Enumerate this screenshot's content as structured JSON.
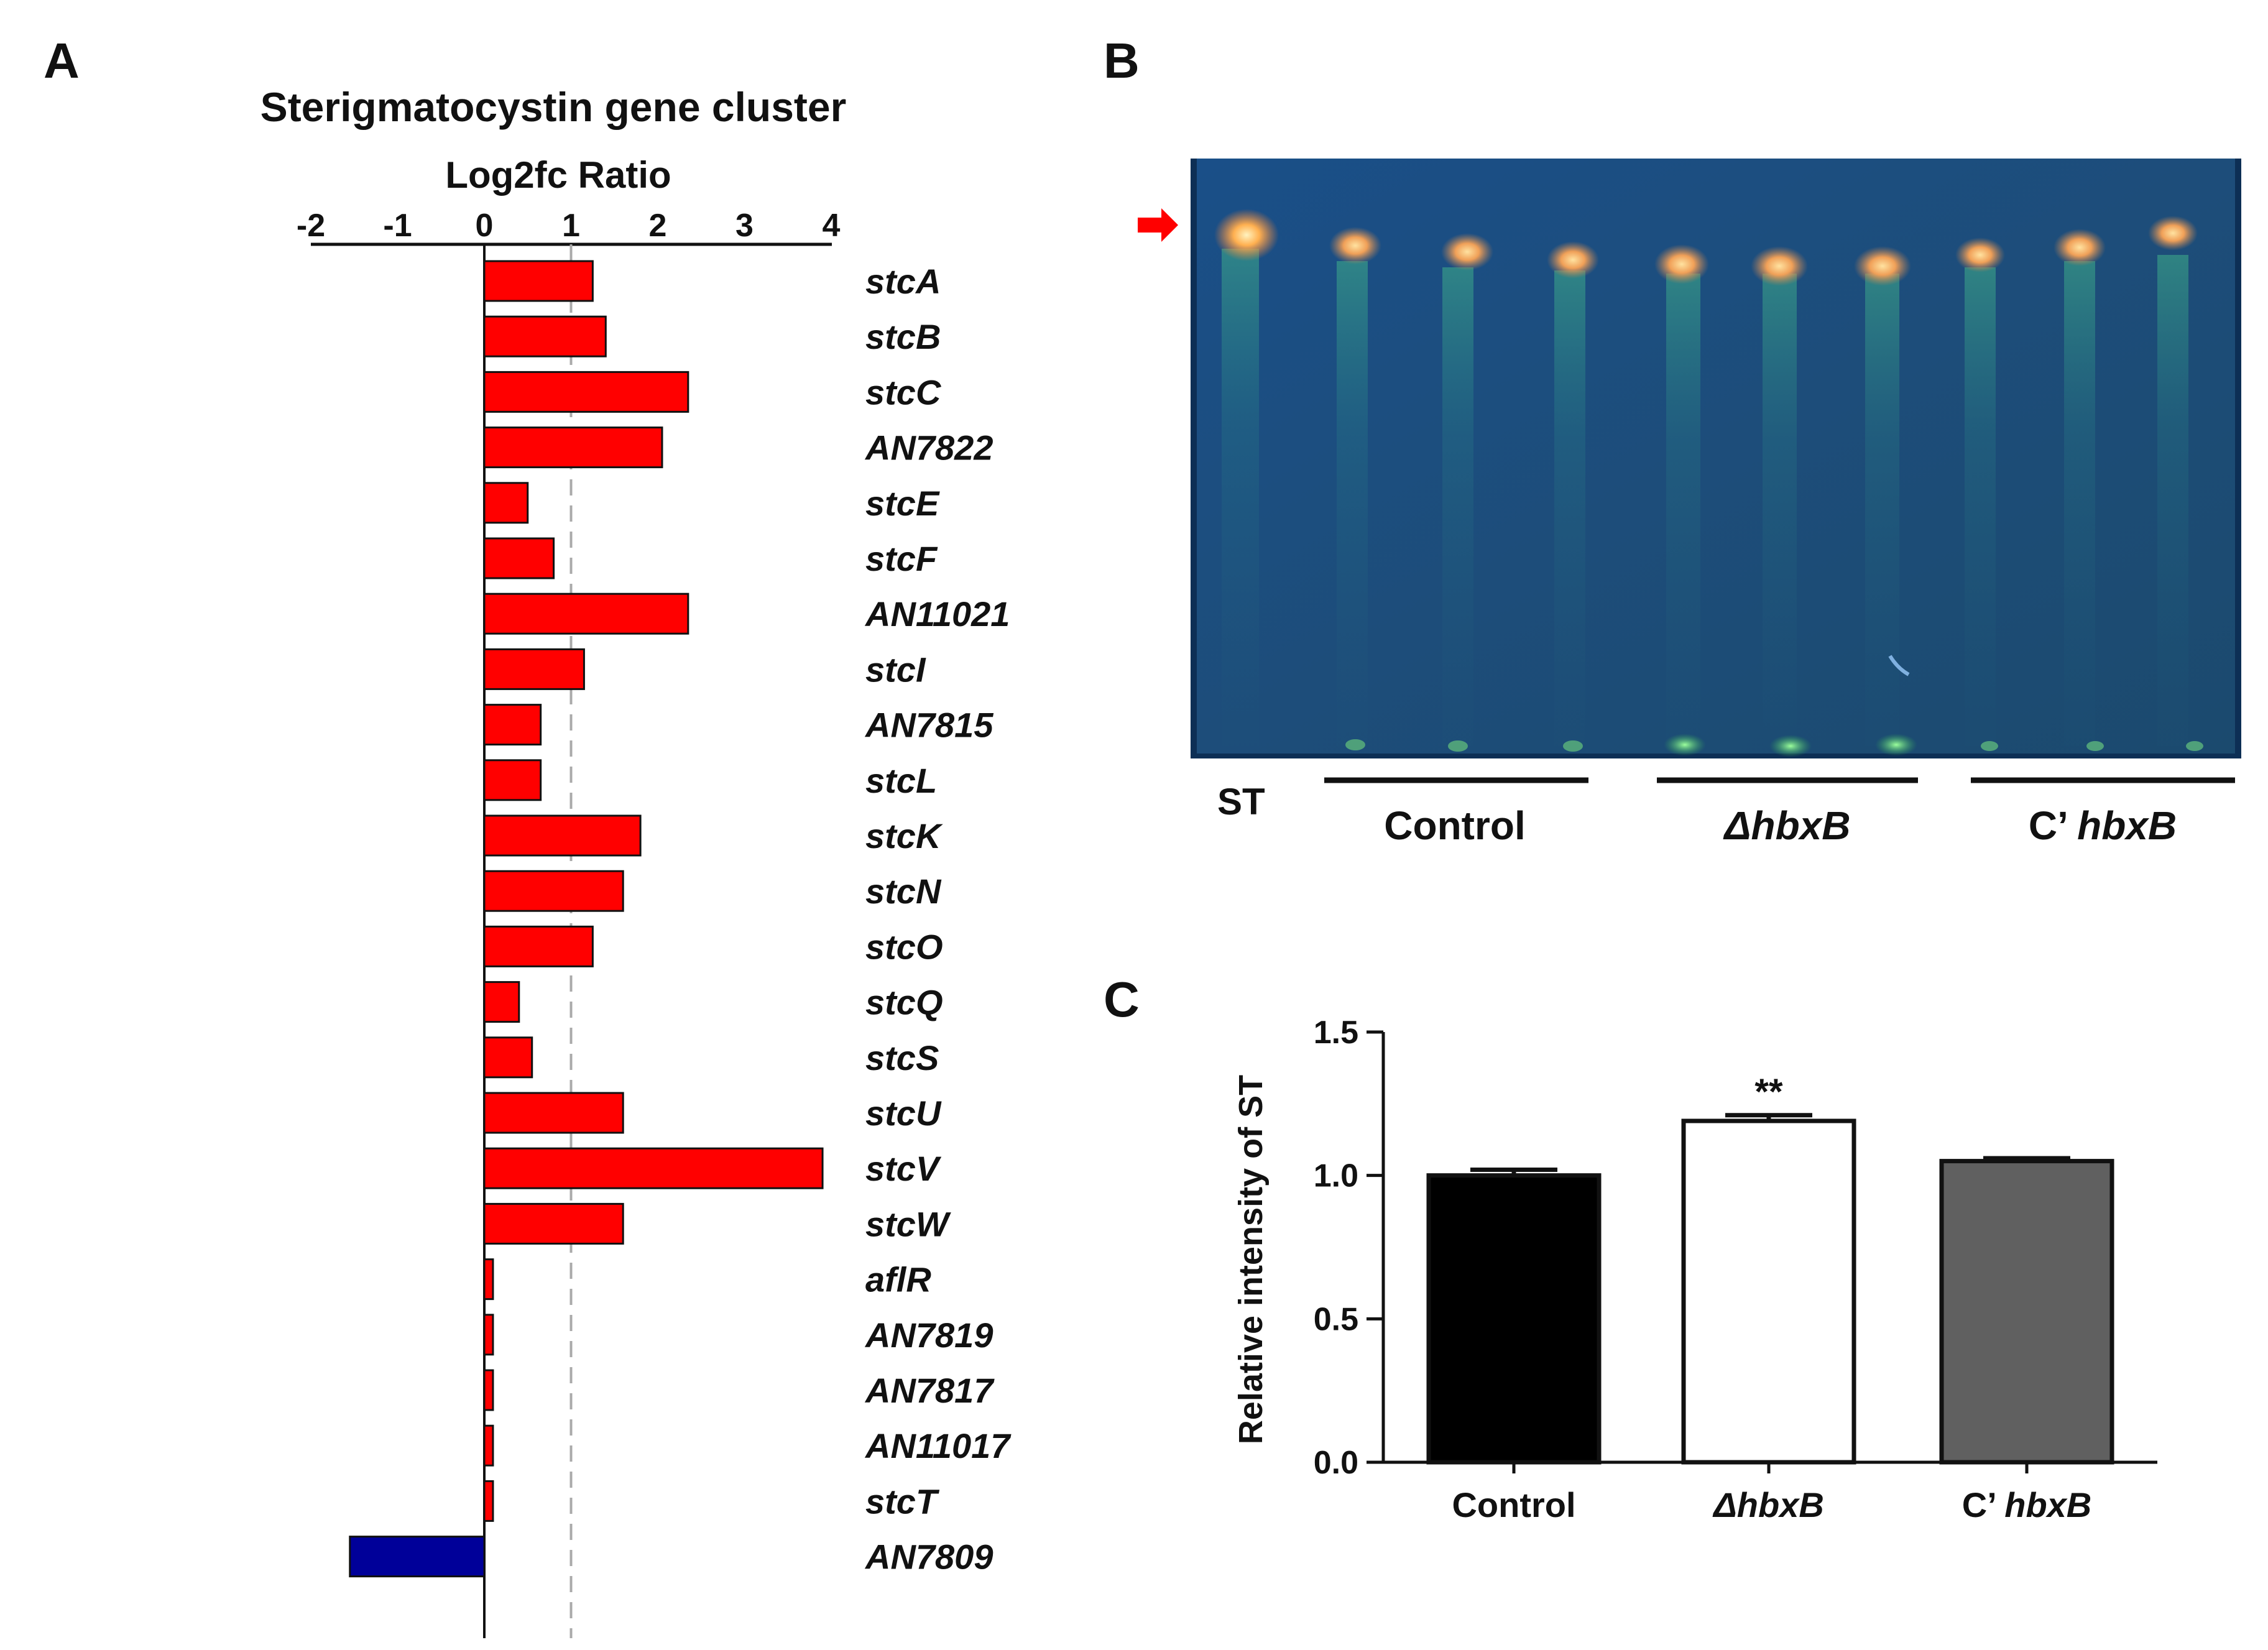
{
  "panels": {
    "a": "A",
    "b": "B",
    "c": "C"
  },
  "chart_data": [
    {
      "type": "bar",
      "orientation": "horizontal",
      "title": "Sterigmatocystin gene cluster",
      "xlabel": "Log2fc Ratio",
      "xlim": [
        -2,
        4
      ],
      "xticks": [
        "-2",
        "-1",
        "0",
        "1",
        "2",
        "3",
        "4"
      ],
      "reference_line": 1,
      "categories": [
        "stcA",
        "stcB",
        "stcC",
        "AN7822",
        "stcE",
        "stcF",
        "AN11021",
        "stcI",
        "AN7815",
        "stcL",
        "stcK",
        "stcN",
        "stcO",
        "stcQ",
        "stcS",
        "stcU",
        "stcV",
        "stcW",
        "aflR",
        "AN7819",
        "AN7817",
        "AN11017",
        "stcT",
        "AN7809"
      ],
      "values": [
        1.25,
        1.4,
        2.35,
        2.05,
        0.5,
        0.8,
        2.35,
        1.15,
        0.65,
        0.65,
        1.8,
        1.6,
        1.25,
        0.4,
        0.55,
        1.6,
        3.9,
        1.6,
        0.1,
        0.1,
        0.1,
        0.1,
        0.1,
        -1.55
      ],
      "colors": {
        "positive": "#ff0000",
        "negative": "#000099"
      }
    },
    {
      "type": "bar",
      "title": "",
      "xlabel": "",
      "ylabel": "Relative intensity of ST",
      "ylim": [
        0,
        1.5
      ],
      "yticks": [
        "0.0",
        "0.5",
        "1.0",
        "1.5"
      ],
      "categories": [
        "Control",
        "ΔhbxB",
        "C’ hbxB"
      ],
      "values": [
        1.0,
        1.19,
        1.05
      ],
      "errors": [
        0.02,
        0.02,
        0.01
      ],
      "annotations": [
        "",
        "**",
        ""
      ],
      "colors": [
        "#000000",
        "#ffffff",
        "#606060"
      ]
    }
  ],
  "tlc": {
    "standard_label": "ST",
    "groups": [
      "Control",
      "ΔhbxB",
      "C’ hbxB"
    ],
    "arrow_color": "#ff0000"
  }
}
